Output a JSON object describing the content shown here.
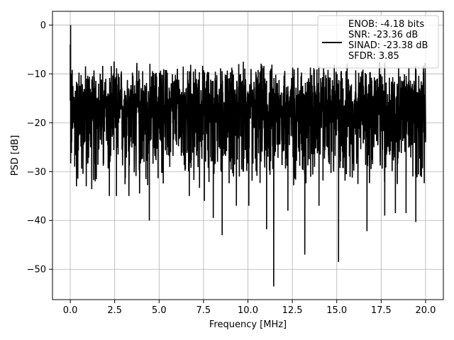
{
  "chart_data": {
    "type": "line",
    "title": "",
    "xlabel": "Frequency [MHz]",
    "ylabel": "PSD [dB]",
    "xlim": [
      -1,
      21
    ],
    "ylim": [
      -56.2,
      2.8
    ],
    "xticks": [
      0.0,
      2.5,
      5.0,
      7.5,
      10.0,
      12.5,
      15.0,
      17.5,
      20.0
    ],
    "xtick_labels": [
      "0.0",
      "2.5",
      "5.0",
      "7.5",
      "10.0",
      "12.5",
      "15.0",
      "17.5",
      "20.0"
    ],
    "yticks": [
      0,
      -10,
      -20,
      -30,
      -40,
      -50
    ],
    "ytick_labels": [
      "0",
      "−10",
      "−20",
      "−30",
      "−40",
      "−50"
    ],
    "grid": true,
    "legend_position": "top-right",
    "series": [
      {
        "name": "ENOB: -4.18 bits\nSNR: -23.36 dB\nSINAD: -23.38 dB\nSFDR: 3.85",
        "color": "#000000",
        "noise_band_db": [
          -35,
          -7
        ],
        "noise_median_db": -17,
        "points": [
          [
            0.0,
            -4
          ],
          [
            0.02,
            0.0
          ],
          [
            0.05,
            -22
          ],
          [
            0.25,
            -29
          ],
          [
            0.35,
            -33
          ],
          [
            0.9,
            -33
          ],
          [
            1.4,
            -32
          ],
          [
            2.2,
            -35
          ],
          [
            2.6,
            -35
          ],
          [
            3.3,
            -35
          ],
          [
            3.9,
            -34.5
          ],
          [
            4.45,
            -40.0
          ],
          [
            6.7,
            -35
          ],
          [
            7.55,
            -36
          ],
          [
            8.05,
            -39.5
          ],
          [
            8.55,
            -43.0
          ],
          [
            9.35,
            -37
          ],
          [
            10.05,
            -37
          ],
          [
            11.05,
            -41.8
          ],
          [
            11.45,
            -53.5
          ],
          [
            12.25,
            -38
          ],
          [
            13.2,
            -47.0
          ],
          [
            14.0,
            -37
          ],
          [
            15.1,
            -48.5
          ],
          [
            16.7,
            -42.2
          ],
          [
            17.7,
            -39
          ],
          [
            18.3,
            -38.5
          ],
          [
            18.9,
            -38.5
          ],
          [
            19.45,
            -40.3
          ],
          [
            20.0,
            -24
          ]
        ]
      }
    ]
  }
}
